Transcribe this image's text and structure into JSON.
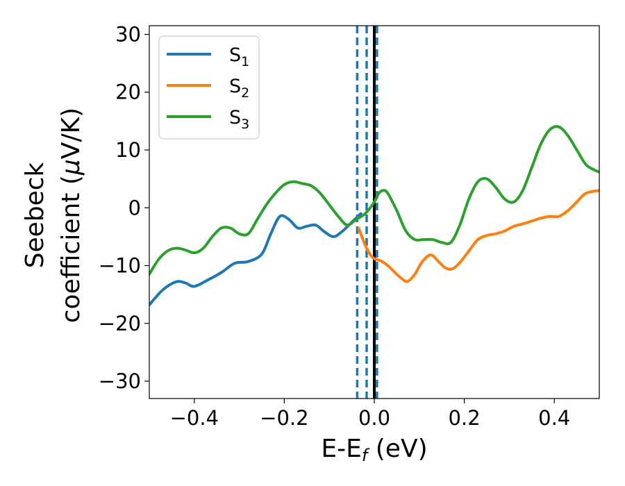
{
  "chart_data": {
    "type": "line",
    "xlabel": {
      "main": "E-E",
      "sub": "f",
      "tail": " (eV)"
    },
    "ylabel": {
      "line1": "Seebeck",
      "line2": "coefficient  (",
      "mu": "μ",
      "line2_tail": "V/K)"
    },
    "xlim": [
      -0.5,
      0.5
    ],
    "ylim": [
      -33,
      31.5
    ],
    "xticks": [
      -0.4,
      -0.2,
      0.0,
      0.2,
      0.4
    ],
    "xtick_labels": [
      "−0.4",
      "−0.2",
      "0.0",
      "0.2",
      "0.4"
    ],
    "yticks": [
      -30,
      -20,
      -10,
      0,
      10,
      20,
      30
    ],
    "ytick_labels": [
      "−30",
      "−20",
      "−10",
      "0",
      "10",
      "20",
      "30"
    ],
    "grid": false,
    "legend_position": "top-left",
    "series": [
      {
        "name": "S",
        "sub": "1",
        "color": "#1f77b4",
        "x": [
          -0.5,
          -0.47,
          -0.44,
          -0.42,
          -0.4,
          -0.37,
          -0.34,
          -0.31,
          -0.28,
          -0.25,
          -0.23,
          -0.21,
          -0.19,
          -0.17,
          -0.15,
          -0.13,
          -0.11,
          -0.09,
          -0.07,
          -0.05,
          -0.03
        ],
        "y": [
          -16.8,
          -14.2,
          -12.8,
          -13.0,
          -13.6,
          -12.5,
          -11.2,
          -9.6,
          -9.3,
          -8.0,
          -4.5,
          -1.5,
          -2.0,
          -3.5,
          -3.2,
          -3.0,
          -4.2,
          -5.0,
          -4.0,
          -2.5,
          -1.0
        ]
      },
      {
        "name": "S",
        "sub": "2",
        "color": "#ff7f0e",
        "x": [
          -0.035,
          -0.02,
          -0.01,
          0.0,
          0.015,
          0.03,
          0.05,
          0.065,
          0.075,
          0.09,
          0.105,
          0.12,
          0.13,
          0.145,
          0.16,
          0.175,
          0.19,
          0.21,
          0.23,
          0.25,
          0.27,
          0.29,
          0.31,
          0.33,
          0.35,
          0.37,
          0.39,
          0.41,
          0.43,
          0.45,
          0.47,
          0.5
        ],
        "y": [
          -3.5,
          -6.5,
          -8.0,
          -8.8,
          -9.2,
          -10.0,
          -11.5,
          -12.5,
          -12.7,
          -11.5,
          -9.5,
          -8.3,
          -8.3,
          -9.5,
          -10.5,
          -10.5,
          -9.5,
          -7.5,
          -5.5,
          -4.8,
          -4.5,
          -4.0,
          -3.2,
          -2.8,
          -2.3,
          -1.8,
          -1.5,
          -1.5,
          -0.5,
          1.0,
          2.5,
          3.0
        ]
      },
      {
        "name": "S",
        "sub": "3",
        "color": "#2ca02c",
        "x": [
          -0.5,
          -0.48,
          -0.46,
          -0.44,
          -0.42,
          -0.4,
          -0.38,
          -0.36,
          -0.34,
          -0.32,
          -0.3,
          -0.28,
          -0.26,
          -0.24,
          -0.22,
          -0.2,
          -0.18,
          -0.16,
          -0.14,
          -0.12,
          -0.1,
          -0.08,
          -0.06,
          -0.04,
          -0.02,
          0.0,
          0.01,
          0.02,
          0.03,
          0.05,
          0.07,
          0.09,
          0.11,
          0.13,
          0.15,
          0.17,
          0.19,
          0.21,
          0.23,
          0.25,
          0.27,
          0.29,
          0.31,
          0.33,
          0.35,
          0.37,
          0.39,
          0.41,
          0.43,
          0.45,
          0.47,
          0.49,
          0.5
        ],
        "y": [
          -11.5,
          -9.0,
          -7.5,
          -7.0,
          -7.3,
          -7.8,
          -7.0,
          -5.0,
          -3.5,
          -3.5,
          -4.5,
          -4.5,
          -2.0,
          0.5,
          2.5,
          4.0,
          4.5,
          4.2,
          3.8,
          2.5,
          0.5,
          -1.5,
          -3.0,
          -2.0,
          -1.0,
          1.0,
          2.5,
          3.0,
          2.5,
          -0.5,
          -4.0,
          -5.5,
          -5.5,
          -5.5,
          -6.0,
          -6.0,
          -3.0,
          1.5,
          4.5,
          5.0,
          3.5,
          1.5,
          1.0,
          3.0,
          7.0,
          11.0,
          13.5,
          14.0,
          12.5,
          10.0,
          7.5,
          6.5,
          6.2
        ]
      }
    ],
    "vlines": [
      {
        "x": 0.0,
        "style": "solid",
        "color": "#000000"
      },
      {
        "x": -0.038,
        "style": "dashed",
        "color": "#1f77b4"
      },
      {
        "x": -0.017,
        "style": "dashed",
        "color": "#1f77b4"
      },
      {
        "x": 0.006,
        "style": "dashed",
        "color": "#1f77b4"
      }
    ]
  }
}
